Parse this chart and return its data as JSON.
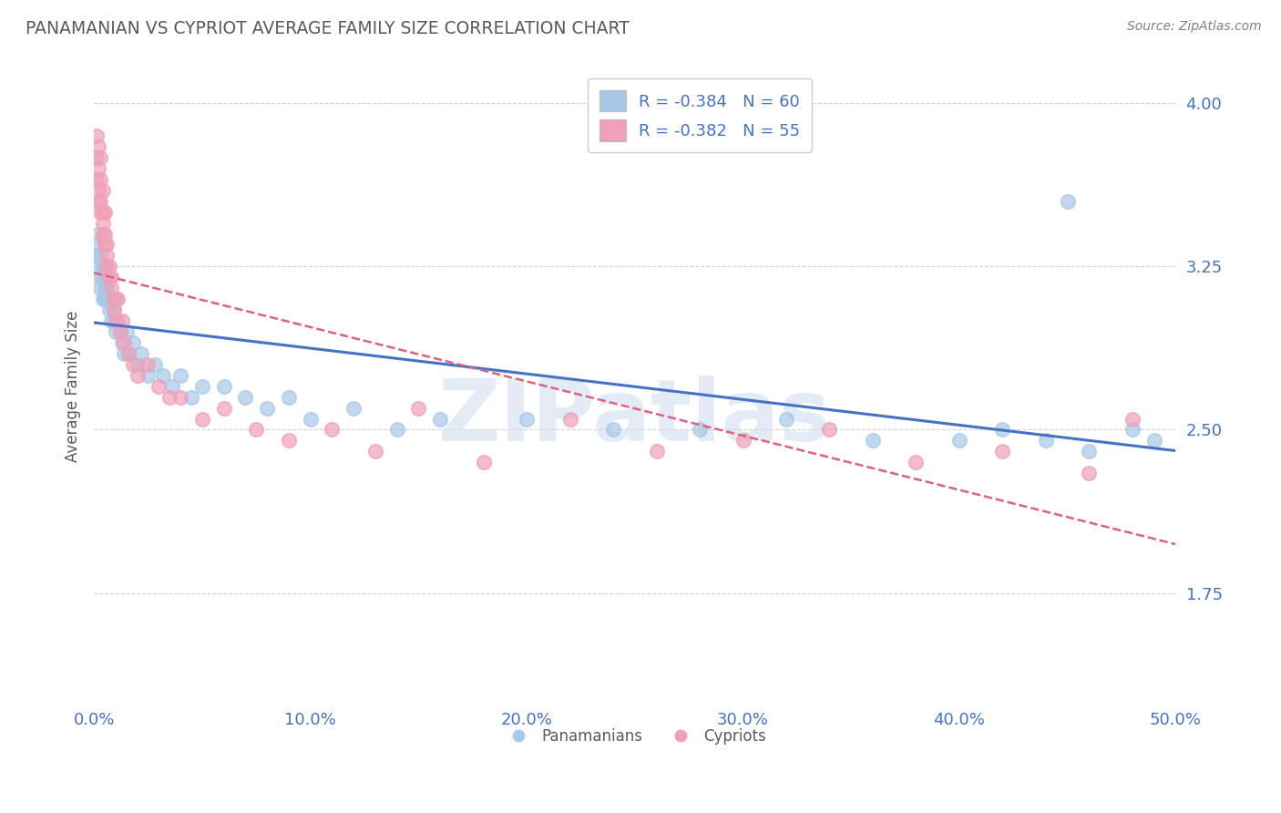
{
  "title": "PANAMANIAN VS CYPRIOT AVERAGE FAMILY SIZE CORRELATION CHART",
  "source": "Source: ZipAtlas.com",
  "ylabel": "Average Family Size",
  "xlim": [
    0,
    0.5
  ],
  "ylim": [
    1.25,
    4.15
  ],
  "yticks": [
    1.75,
    2.5,
    3.25,
    4.0
  ],
  "ytick_labels": [
    "1.75",
    "2.50",
    "3.25",
    "4.00"
  ],
  "xticks": [
    0.0,
    0.1,
    0.2,
    0.3,
    0.4,
    0.5
  ],
  "xtick_labels": [
    "0.0%",
    "10.0%",
    "20.0%",
    "30.0%",
    "40.0%",
    "50.0%"
  ],
  "legend_label1": "Panamanians",
  "legend_label2": "Cypriots",
  "blue_color": "#A8C8E8",
  "pink_color": "#F0A0B8",
  "blue_line_color": "#4472C4",
  "pink_line_color": "#E06080",
  "title_color": "#595959",
  "source_color": "#808080",
  "axis_color": "#4472C4",
  "watermark": "ZIPatlas",
  "pan_x": [
    0.001,
    0.001,
    0.002,
    0.002,
    0.003,
    0.003,
    0.003,
    0.004,
    0.004,
    0.004,
    0.005,
    0.005,
    0.005,
    0.006,
    0.006,
    0.006,
    0.007,
    0.007,
    0.008,
    0.008,
    0.009,
    0.009,
    0.01,
    0.01,
    0.011,
    0.012,
    0.013,
    0.014,
    0.015,
    0.016,
    0.018,
    0.02,
    0.022,
    0.025,
    0.028,
    0.032,
    0.036,
    0.04,
    0.045,
    0.05,
    0.06,
    0.07,
    0.08,
    0.09,
    0.1,
    0.12,
    0.14,
    0.16,
    0.2,
    0.24,
    0.28,
    0.32,
    0.36,
    0.4,
    0.42,
    0.44,
    0.46,
    0.48,
    0.49,
    0.45
  ],
  "pan_y": [
    3.35,
    3.3,
    3.4,
    3.25,
    3.2,
    3.3,
    3.15,
    3.25,
    3.2,
    3.1,
    3.15,
    3.25,
    3.1,
    3.2,
    3.1,
    3.15,
    3.05,
    3.1,
    3.0,
    3.1,
    3.05,
    3.0,
    3.1,
    2.95,
    3.0,
    2.95,
    2.9,
    2.85,
    2.95,
    2.85,
    2.9,
    2.8,
    2.85,
    2.75,
    2.8,
    2.75,
    2.7,
    2.75,
    2.65,
    2.7,
    2.7,
    2.65,
    2.6,
    2.65,
    2.55,
    2.6,
    2.5,
    2.55,
    2.55,
    2.5,
    2.5,
    2.55,
    2.45,
    2.45,
    2.5,
    2.45,
    2.4,
    2.5,
    2.45,
    3.55
  ],
  "cyp_x": [
    0.001,
    0.001,
    0.001,
    0.002,
    0.002,
    0.002,
    0.002,
    0.003,
    0.003,
    0.003,
    0.003,
    0.004,
    0.004,
    0.004,
    0.004,
    0.005,
    0.005,
    0.005,
    0.006,
    0.006,
    0.006,
    0.007,
    0.007,
    0.008,
    0.008,
    0.009,
    0.009,
    0.01,
    0.011,
    0.012,
    0.013,
    0.014,
    0.016,
    0.018,
    0.02,
    0.025,
    0.03,
    0.035,
    0.04,
    0.05,
    0.06,
    0.075,
    0.09,
    0.11,
    0.13,
    0.15,
    0.18,
    0.22,
    0.26,
    0.3,
    0.34,
    0.38,
    0.42,
    0.46,
    0.48
  ],
  "cyp_y": [
    3.85,
    3.75,
    3.65,
    3.8,
    3.7,
    3.6,
    3.55,
    3.75,
    3.65,
    3.55,
    3.5,
    3.6,
    3.5,
    3.45,
    3.4,
    3.5,
    3.4,
    3.35,
    3.35,
    3.3,
    3.25,
    3.25,
    3.2,
    3.2,
    3.15,
    3.1,
    3.05,
    3.0,
    3.1,
    2.95,
    3.0,
    2.9,
    2.85,
    2.8,
    2.75,
    2.8,
    2.7,
    2.65,
    2.65,
    2.55,
    2.6,
    2.5,
    2.45,
    2.5,
    2.4,
    2.6,
    2.35,
    2.55,
    2.4,
    2.45,
    2.5,
    2.35,
    2.4,
    2.3,
    2.55
  ]
}
